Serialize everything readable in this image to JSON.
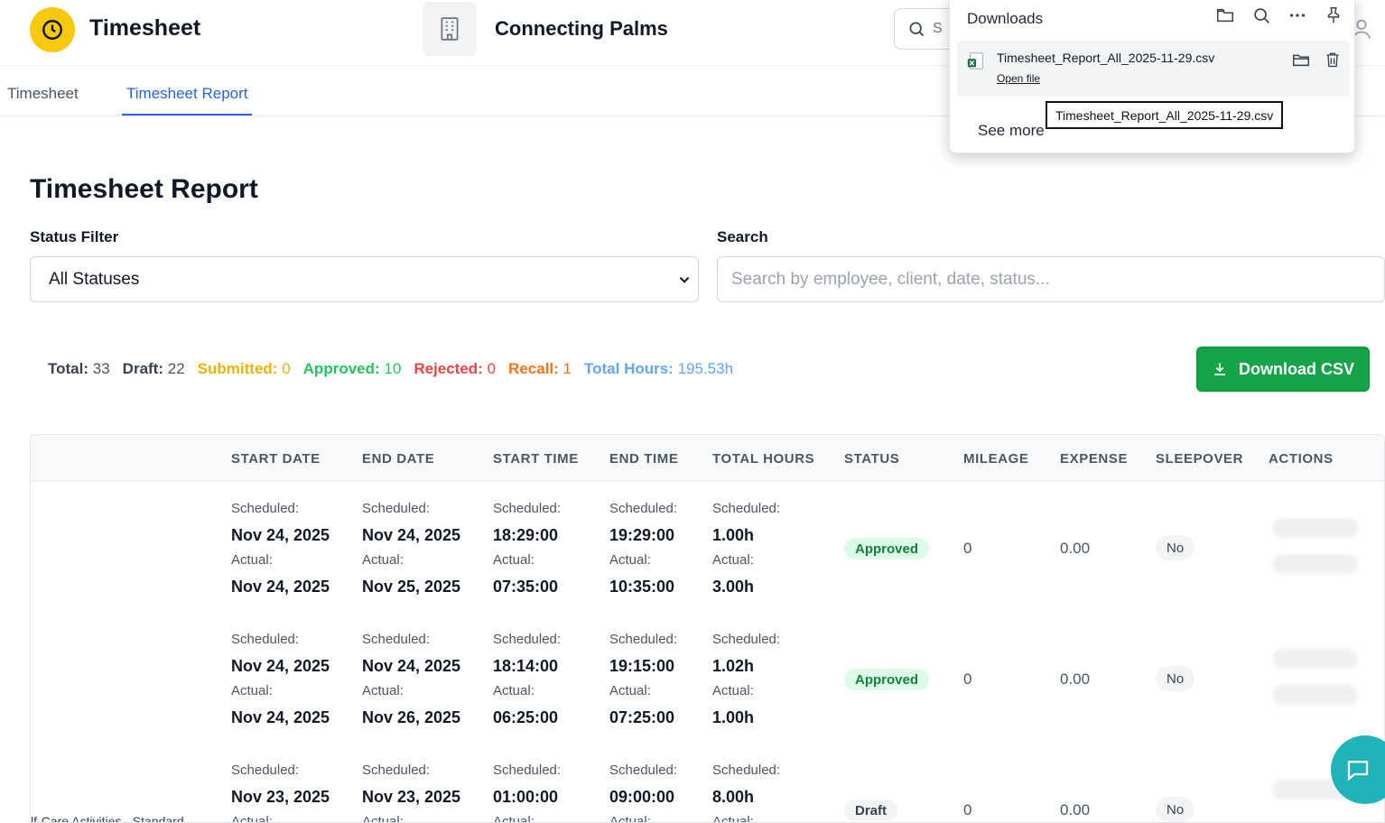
{
  "header": {
    "app_title": "Timesheet",
    "org_name": "Connecting Palms",
    "search_placeholder": "S"
  },
  "tabs": [
    {
      "label": "Timesheet",
      "active": false
    },
    {
      "label": "Timesheet Report",
      "active": true
    }
  ],
  "main": {
    "title": "Timesheet Report",
    "status_filter_label": "Status Filter",
    "status_filter_value": "All Statuses",
    "search_label": "Search",
    "search_placeholder": "Search by employee, client, date, status..."
  },
  "stats": {
    "total_label": "Total:",
    "total": "33",
    "draft_label": "Draft:",
    "draft": "22",
    "submitted_label": "Submitted:",
    "submitted": "0",
    "approved_label": "Approved:",
    "approved": "10",
    "rejected_label": "Rejected:",
    "rejected": "0",
    "recall_label": "Recall:",
    "recall": "1",
    "hours_label": "Total Hours:",
    "hours": "195.53h"
  },
  "download_button": "Download CSV",
  "table": {
    "columns": [
      "START DATE",
      "END DATE",
      "START TIME",
      "END TIME",
      "TOTAL HOURS",
      "STATUS",
      "MILEAGE",
      "EXPENSE",
      "SLEEPOVER",
      "ACTIONS"
    ],
    "scheduled_label": "Scheduled:",
    "actual_label": "Actual:",
    "rows": [
      {
        "start_date": {
          "scheduled": "Nov 24, 2025",
          "actual": "Nov 24, 2025"
        },
        "end_date": {
          "scheduled": "Nov 24, 2025",
          "actual": "Nov 25, 2025"
        },
        "start_time": {
          "scheduled": "18:29:00",
          "actual": "07:35:00"
        },
        "end_time": {
          "scheduled": "19:29:00",
          "actual": "10:35:00"
        },
        "total_hours": {
          "scheduled": "1.00h",
          "actual": "3.00h"
        },
        "status": "Approved",
        "mileage": "0",
        "expense": "0.00",
        "sleepover": "No"
      },
      {
        "start_date": {
          "scheduled": "Nov 24, 2025",
          "actual": "Nov 24, 2025"
        },
        "end_date": {
          "scheduled": "Nov 24, 2025",
          "actual": "Nov 26, 2025"
        },
        "start_time": {
          "scheduled": "18:14:00",
          "actual": "06:25:00"
        },
        "end_time": {
          "scheduled": "19:15:00",
          "actual": "07:25:00"
        },
        "total_hours": {
          "scheduled": "1.02h",
          "actual": "1.00h"
        },
        "status": "Approved",
        "mileage": "0",
        "expense": "0.00",
        "sleepover": "No"
      },
      {
        "service": "lf-Care Activities - Standard",
        "start_date": {
          "scheduled": "Nov 23, 2025",
          "actual": ""
        },
        "end_date": {
          "scheduled": "Nov 23, 2025",
          "actual": ""
        },
        "start_time": {
          "scheduled": "01:00:00",
          "actual": ""
        },
        "end_time": {
          "scheduled": "09:00:00",
          "actual": ""
        },
        "total_hours": {
          "scheduled": "8.00h",
          "actual": ""
        },
        "status": "Draft",
        "mileage": "0",
        "expense": "0.00",
        "sleepover": "No"
      }
    ]
  },
  "downloads": {
    "title": "Downloads",
    "file_name": "Timesheet_Report_All_2025-11-29.csv",
    "open_file": "Open file",
    "see_more": "See more",
    "tooltip": "Timesheet_Report_All_2025-11-29.csv"
  },
  "colors": {
    "accent": "#2563eb",
    "download_button": "#16a34a",
    "logo": "#f6c90e",
    "chat_fab": "#1fb5b8"
  },
  "icons": [
    "clock-icon",
    "building-icon",
    "search-icon",
    "user-icon",
    "chevron-down-icon",
    "download-icon",
    "folder-icon",
    "more-icon",
    "pin-icon",
    "excel-file-icon",
    "trash-icon",
    "chat-icon"
  ]
}
